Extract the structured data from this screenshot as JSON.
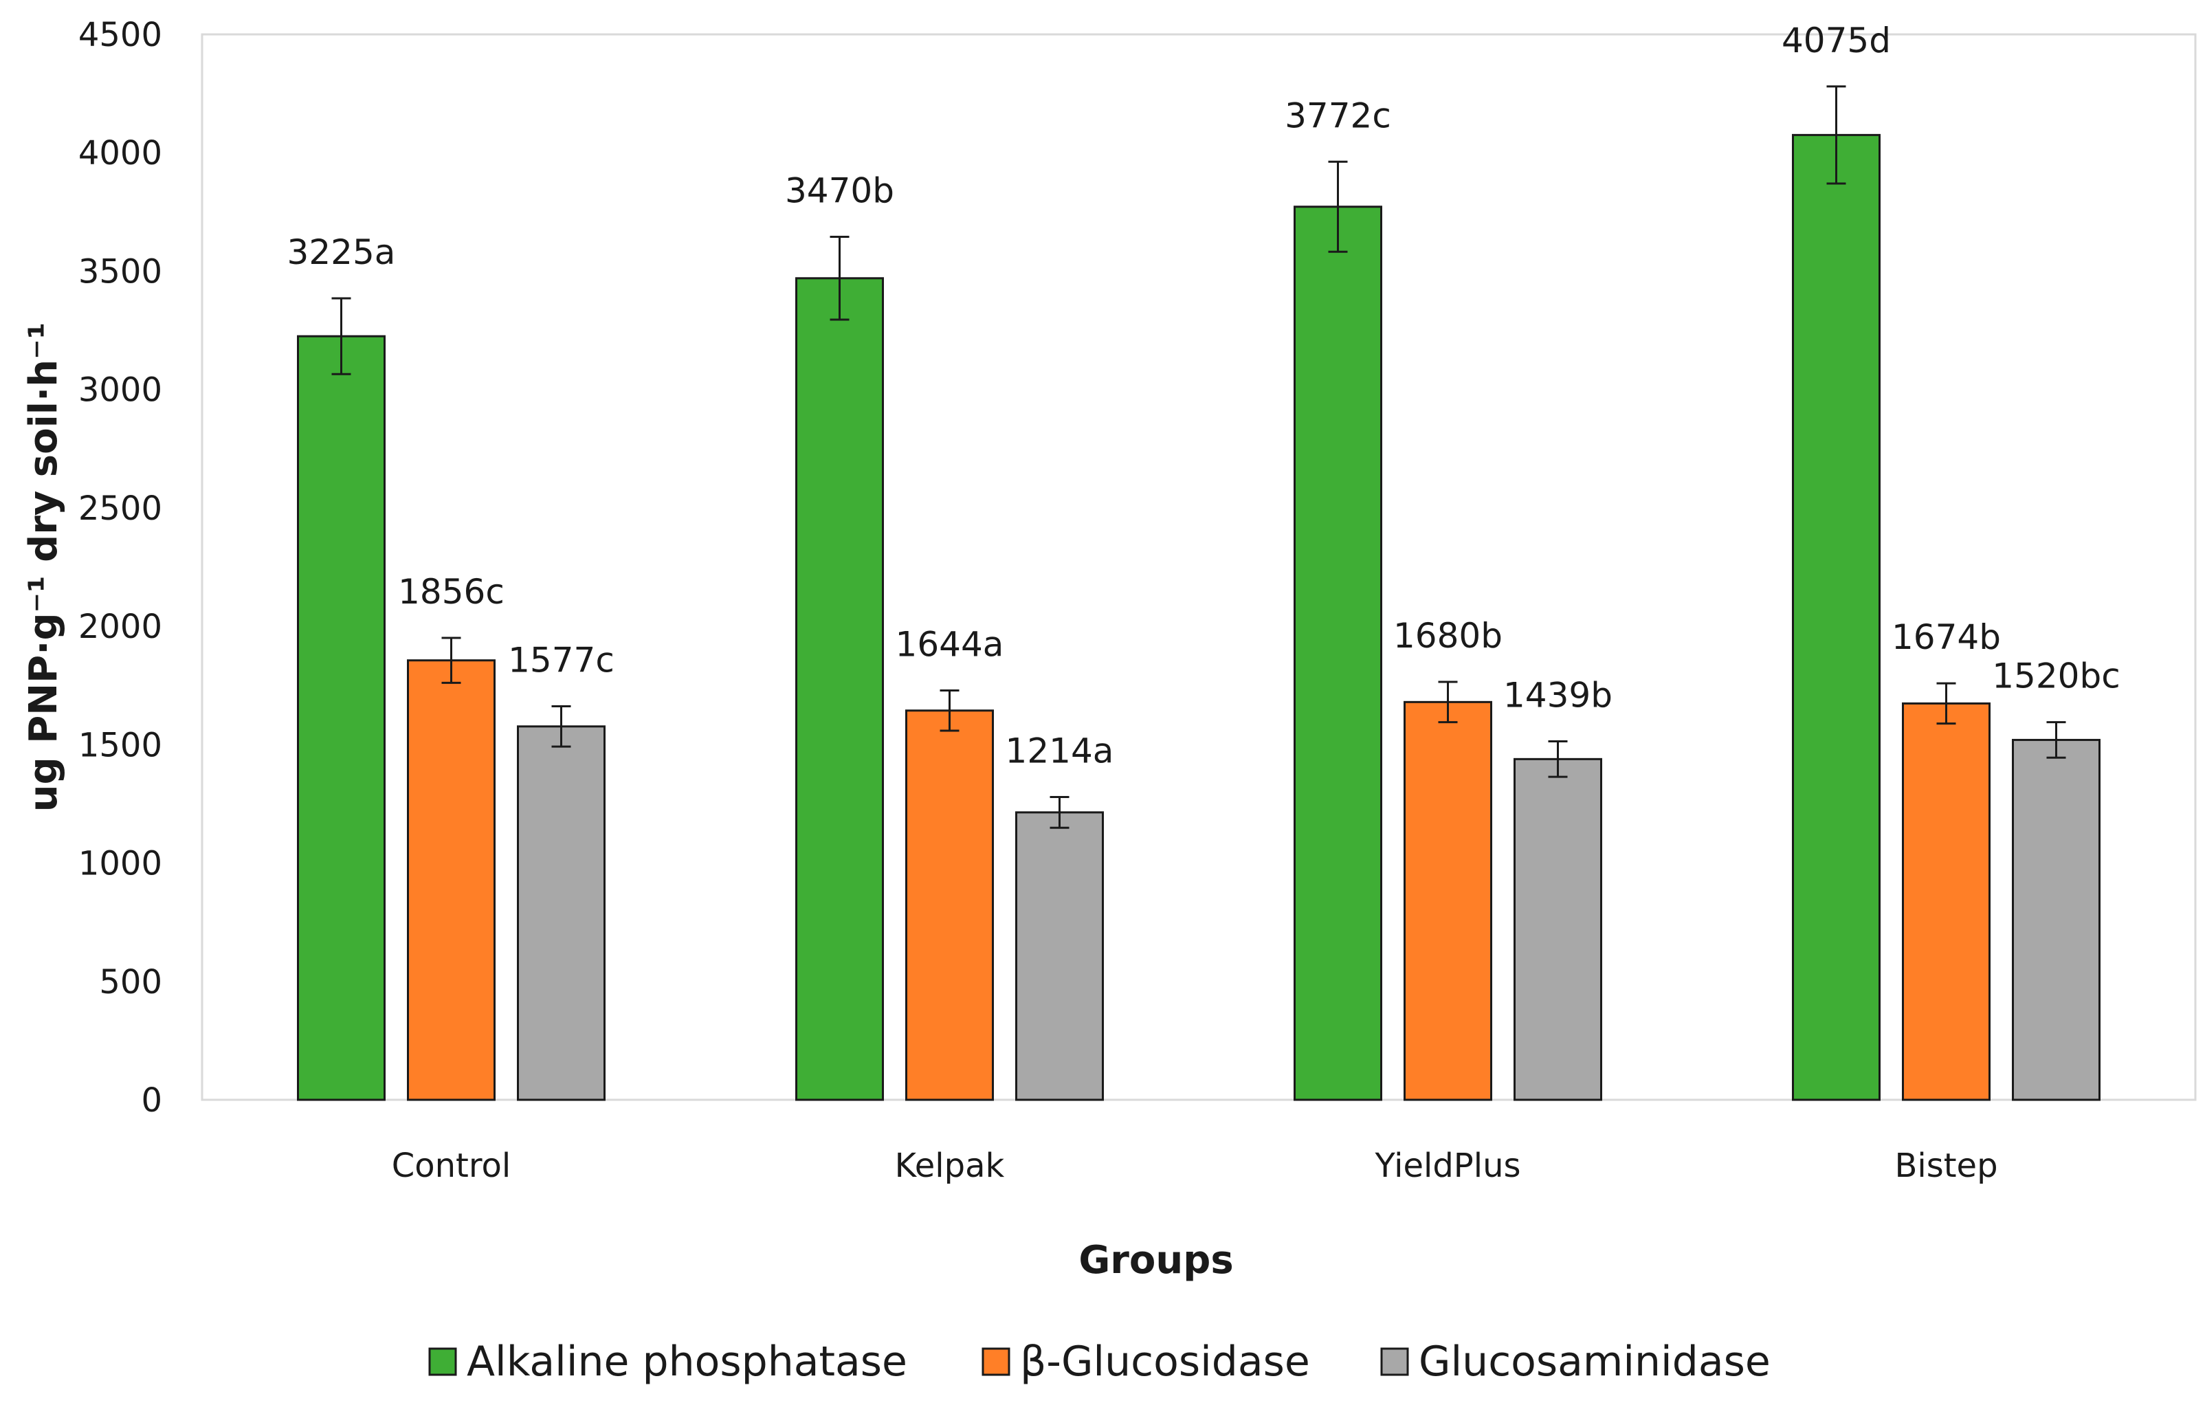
{
  "chart_data": {
    "type": "bar",
    "title": "",
    "xlabel": "Groups",
    "ylabel": "ug PNP·g⁻¹ dry soil·h⁻¹",
    "ylim": [
      0,
      4500
    ],
    "ytick_step": 500,
    "yticks": [
      "0",
      "500",
      "1000",
      "1500",
      "2000",
      "2500",
      "3000",
      "3500",
      "4000",
      "4500"
    ],
    "grid": false,
    "legend_position": "bottom",
    "categories": [
      "Control",
      "Kelpak",
      "YieldPlus",
      "Bistep"
    ],
    "series": [
      {
        "name": "Alkaline phosphatase",
        "color": "#3fae35",
        "values": [
          3225,
          3470,
          3772,
          4075
        ],
        "errors": [
          160,
          175,
          190,
          205
        ],
        "labels": [
          "3225a",
          "3470b",
          "3772c",
          "4075d"
        ]
      },
      {
        "name": "β-Glucosidase",
        "color": "#ff7f27",
        "values": [
          1856,
          1644,
          1680,
          1674
        ],
        "errors": [
          95,
          85,
          85,
          85
        ],
        "labels": [
          "1856c",
          "1644a",
          "1680b",
          "1674b"
        ]
      },
      {
        "name": "Glucosaminidase",
        "color": "#a8a8a8",
        "values": [
          1577,
          1214,
          1439,
          1520
        ],
        "errors": [
          85,
          65,
          75,
          75
        ],
        "labels": [
          "1577c",
          "1214a",
          "1439b",
          "1520bc"
        ]
      }
    ]
  }
}
